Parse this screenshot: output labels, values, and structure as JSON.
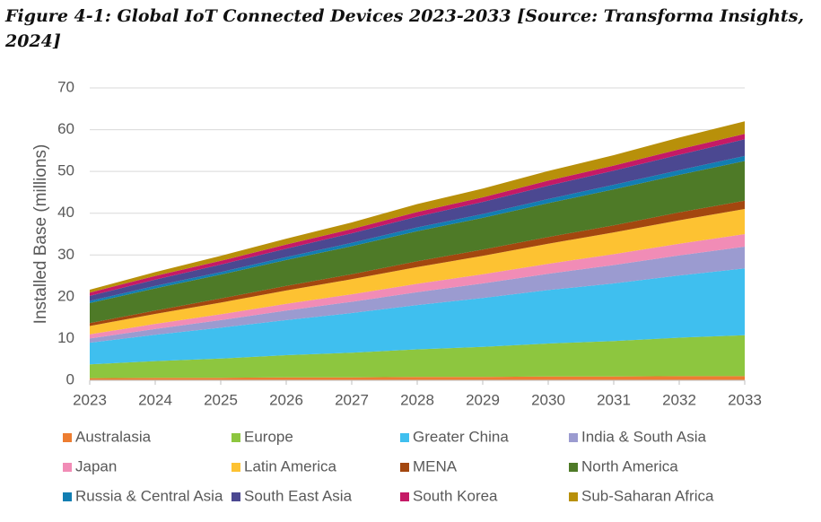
{
  "chart_data": {
    "type": "stacked_area",
    "title": "Figure 4-1: Global IoT Connected Devices 2023-2033 [Source: Transforma Insights, 2024]",
    "y_label": "Installed Base (millions)",
    "x": [
      2023,
      2024,
      2025,
      2026,
      2027,
      2028,
      2029,
      2030,
      2031,
      2032,
      2033
    ],
    "xlim": [
      2023,
      2033
    ],
    "xticks": [
      2023,
      2024,
      2025,
      2026,
      2027,
      2028,
      2029,
      2030,
      2031,
      2032,
      2033
    ],
    "ylim": [
      0,
      70
    ],
    "yticks": [
      0,
      10,
      20,
      30,
      40,
      50,
      60,
      70
    ],
    "grid": true,
    "legend": "bottom",
    "series": [
      {
        "name": "Australasia",
        "color": "#ed7d31",
        "values": [
          0.5,
          0.6,
          0.6,
          0.7,
          0.7,
          0.8,
          0.8,
          0.9,
          0.9,
          1.0,
          1.0
        ]
      },
      {
        "name": "Europe",
        "color": "#8dc63f",
        "values": [
          3.3,
          4.0,
          4.6,
          5.3,
          5.9,
          6.6,
          7.2,
          7.9,
          8.5,
          9.2,
          9.8
        ]
      },
      {
        "name": "Greater China",
        "color": "#3fbfef",
        "values": [
          5.2,
          6.3,
          7.4,
          8.4,
          9.5,
          10.6,
          11.7,
          12.8,
          13.8,
          14.9,
          16.0
        ]
      },
      {
        "name": "India & South Asia",
        "color": "#9b9bd0",
        "values": [
          1.0,
          1.4,
          1.8,
          2.3,
          2.7,
          3.1,
          3.5,
          3.9,
          4.4,
          4.8,
          5.2
        ]
      },
      {
        "name": "Japan",
        "color": "#f18cb6",
        "values": [
          1.0,
          1.2,
          1.4,
          1.6,
          1.8,
          2.0,
          2.2,
          2.4,
          2.6,
          2.8,
          3.0
        ]
      },
      {
        "name": "Latin America",
        "color": "#fdc232",
        "values": [
          2.0,
          2.4,
          2.8,
          3.2,
          3.6,
          4.0,
          4.4,
          4.8,
          5.2,
          5.6,
          6.0
        ]
      },
      {
        "name": "MENA",
        "color": "#a3470f",
        "values": [
          0.7,
          0.8,
          1.0,
          1.1,
          1.2,
          1.4,
          1.5,
          1.6,
          1.7,
          1.9,
          2.0
        ]
      },
      {
        "name": "North America",
        "color": "#4e7a27",
        "values": [
          4.8,
          5.3,
          5.7,
          6.2,
          6.7,
          7.2,
          7.6,
          8.1,
          8.6,
          9.0,
          9.5
        ]
      },
      {
        "name": "Russia & Central Asia",
        "color": "#127eb2",
        "values": [
          0.5,
          0.6,
          0.6,
          0.7,
          0.8,
          0.9,
          0.9,
          1.0,
          1.1,
          1.1,
          1.2
        ]
      },
      {
        "name": "South East Asia",
        "color": "#4b4891",
        "values": [
          1.2,
          1.5,
          1.8,
          2.0,
          2.3,
          2.6,
          2.9,
          3.2,
          3.4,
          3.7,
          4.0
        ]
      },
      {
        "name": "South Korea",
        "color": "#c51a66",
        "values": [
          0.8,
          0.9,
          0.9,
          1.0,
          1.0,
          1.1,
          1.1,
          1.2,
          1.2,
          1.3,
          1.3
        ]
      },
      {
        "name": "Sub-Saharan Africa",
        "color": "#b8900a",
        "values": [
          0.7,
          0.9,
          1.2,
          1.4,
          1.6,
          1.9,
          2.1,
          2.3,
          2.5,
          2.8,
          3.0
        ]
      }
    ]
  }
}
